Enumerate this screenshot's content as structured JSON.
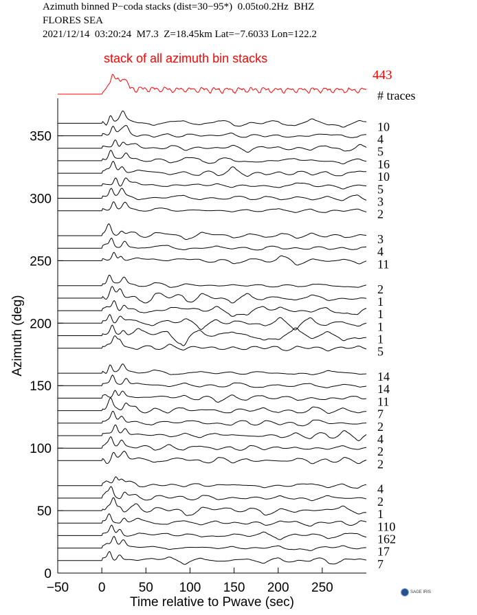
{
  "header": {
    "line1": "Azimuth binned P−coda stacks (dist=30−95*)  0.05to0.2Hz  BHZ",
    "line2": "FLORES SEA",
    "line3": "2021/12/14  03:20:24  M7.3  Z=18.45km Lat=−7.6033 Lon=122.2"
  },
  "logo_text": "SAGE IRIS",
  "chart_data": {
    "type": "line",
    "xlabel": "Time relative to Pwave (sec)",
    "ylabel": "Azimuth (deg)",
    "xlim": [
      -50,
      300
    ],
    "ylim": [
      0,
      380
    ],
    "xticks": [
      -50,
      0,
      50,
      100,
      150,
      200,
      250
    ],
    "yticks": [
      0,
      50,
      100,
      150,
      200,
      250,
      300,
      350
    ],
    "top_stack": {
      "label": "stack of all azimuth bin stacks",
      "count": "443",
      "color": "#ff0000"
    },
    "count_header": "# traces",
    "traces": [
      {
        "azimuth": 360,
        "count": "10"
      },
      {
        "azimuth": 350,
        "count": "4"
      },
      {
        "azimuth": 340,
        "count": "5"
      },
      {
        "azimuth": 330,
        "count": "16"
      },
      {
        "azimuth": 320,
        "count": "10"
      },
      {
        "azimuth": 310,
        "count": "5"
      },
      {
        "azimuth": 300,
        "count": "3"
      },
      {
        "azimuth": 290,
        "count": "2"
      },
      {
        "azimuth": 270,
        "count": "3"
      },
      {
        "azimuth": 260,
        "count": "4"
      },
      {
        "azimuth": 250,
        "count": "11"
      },
      {
        "azimuth": 230,
        "count": "2"
      },
      {
        "azimuth": 220,
        "count": "1"
      },
      {
        "azimuth": 210,
        "count": "1"
      },
      {
        "azimuth": 200,
        "count": "1"
      },
      {
        "azimuth": 190,
        "count": "1"
      },
      {
        "azimuth": 180,
        "count": "5"
      },
      {
        "azimuth": 160,
        "count": "14"
      },
      {
        "azimuth": 150,
        "count": "14"
      },
      {
        "azimuth": 140,
        "count": "11"
      },
      {
        "azimuth": 130,
        "count": "7"
      },
      {
        "azimuth": 120,
        "count": "2"
      },
      {
        "azimuth": 110,
        "count": "4"
      },
      {
        "azimuth": 100,
        "count": "2"
      },
      {
        "azimuth": 90,
        "count": "2"
      },
      {
        "azimuth": 70,
        "count": "4"
      },
      {
        "azimuth": 60,
        "count": "2"
      },
      {
        "azimuth": 50,
        "count": "1"
      },
      {
        "azimuth": 40,
        "count": "110"
      },
      {
        "azimuth": 30,
        "count": "162"
      },
      {
        "azimuth": 20,
        "count": "17"
      },
      {
        "azimuth": 10,
        "count": "7"
      }
    ],
    "colors": {
      "traces": "#000000",
      "stack": "#ff0000"
    }
  }
}
